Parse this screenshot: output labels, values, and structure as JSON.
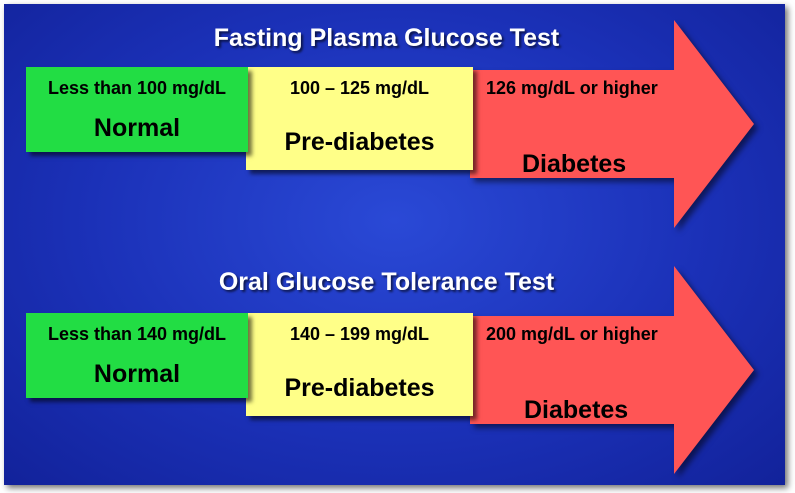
{
  "tests": [
    {
      "title": "Fasting Plasma Glucose Test",
      "normal": {
        "range": "Less than 100 mg/dL",
        "label": "Normal"
      },
      "prediabetes": {
        "range": "100 – 125 mg/dL",
        "label": "Pre-diabetes"
      },
      "diabetes": {
        "range": "126 mg/dL or higher",
        "label": "Diabetes"
      }
    },
    {
      "title": "Oral Glucose Tolerance Test",
      "normal": {
        "range": "Less than 140 mg/dL",
        "label": "Normal"
      },
      "prediabetes": {
        "range": "140 – 199 mg/dL",
        "label": "Pre-diabetes"
      },
      "diabetes": {
        "range": "200 mg/dL or higher",
        "label": "Diabetes"
      }
    }
  ],
  "colors": {
    "normal": "#22dd44",
    "prediabetes": "#ffff88",
    "diabetes": "#ff5555",
    "background": "#1b31b8"
  }
}
